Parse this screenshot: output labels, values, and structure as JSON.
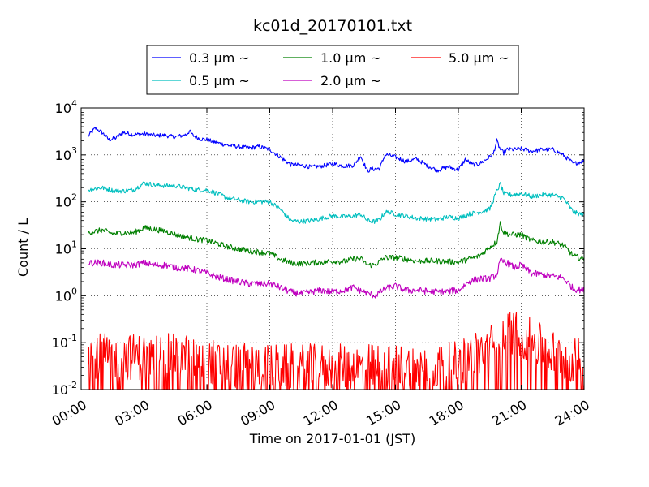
{
  "chart_data": {
    "type": "line",
    "title": "kc01d_20170101.txt",
    "xlabel": "Time on 2017-01-01 (JST)",
    "ylabel": "Count / L",
    "xlim": [
      "00:00",
      "24:00"
    ],
    "ylim": [
      0.01,
      10000
    ],
    "yscale": "log",
    "grid": true,
    "legend_position": "top-center (outside plot)",
    "x_ticks": [
      "00:00",
      "03:00",
      "06:00",
      "09:00",
      "12:00",
      "15:00",
      "18:00",
      "21:00",
      "24:00"
    ],
    "y_ticks": [
      {
        "base": "10",
        "exp": "-2"
      },
      {
        "base": "10",
        "exp": "-1"
      },
      {
        "base": "10",
        "exp": "0"
      },
      {
        "base": "10",
        "exp": "1"
      },
      {
        "base": "10",
        "exp": "2"
      },
      {
        "base": "10",
        "exp": "3"
      },
      {
        "base": "10",
        "exp": "4"
      }
    ],
    "series": [
      {
        "name": "0.3 μm ~",
        "color": "#0000ff",
        "noise": 0.045,
        "x": [
          "00:20",
          "00:40",
          "01:00",
          "01:20",
          "01:40",
          "02:00",
          "02:30",
          "03:00",
          "03:30",
          "04:00",
          "04:30",
          "05:00",
          "05:10",
          "05:20",
          "05:40",
          "06:00",
          "06:30",
          "07:00",
          "07:30",
          "08:00",
          "08:30",
          "09:00",
          "09:30",
          "10:00",
          "10:30",
          "11:00",
          "11:30",
          "12:00",
          "12:30",
          "13:00",
          "13:20",
          "13:40",
          "13:50",
          "14:00",
          "14:15",
          "14:30",
          "14:40",
          "15:00",
          "15:30",
          "16:00",
          "16:30",
          "17:00",
          "17:30",
          "18:00",
          "18:20",
          "18:40",
          "19:00",
          "19:20",
          "19:40",
          "19:50",
          "20:00",
          "20:10",
          "20:20",
          "20:40",
          "21:00",
          "21:30",
          "22:00",
          "22:30",
          "23:00",
          "23:30",
          "24:00"
        ],
        "y": [
          2500,
          3700,
          3000,
          2100,
          2300,
          3000,
          2700,
          2800,
          2600,
          2600,
          2400,
          2700,
          3200,
          2600,
          2200,
          2100,
          1800,
          1600,
          1500,
          1400,
          1500,
          1300,
          900,
          620,
          600,
          550,
          580,
          650,
          580,
          600,
          950,
          450,
          500,
          500,
          520,
          1000,
          1000,
          900,
          720,
          820,
          600,
          470,
          560,
          480,
          800,
          620,
          650,
          800,
          1050,
          2000,
          1300,
          1100,
          1300,
          1300,
          1350,
          1200,
          1300,
          1300,
          1000,
          650,
          750
        ]
      },
      {
        "name": "0.5 μm ~",
        "color": "#00bfbf",
        "noise": 0.05,
        "x": [
          "00:20",
          "01:00",
          "01:30",
          "02:00",
          "02:30",
          "03:00",
          "03:30",
          "04:00",
          "04:30",
          "05:00",
          "05:30",
          "06:00",
          "06:30",
          "07:00",
          "08:00",
          "09:00",
          "09:30",
          "10:00",
          "10:30",
          "11:00",
          "11:30",
          "12:00",
          "12:30",
          "13:00",
          "13:20",
          "13:40",
          "14:00",
          "14:15",
          "14:30",
          "14:40",
          "15:00",
          "15:30",
          "16:00",
          "17:00",
          "17:30",
          "18:00",
          "18:30",
          "19:00",
          "19:30",
          "19:50",
          "20:00",
          "20:10",
          "20:30",
          "21:00",
          "21:30",
          "22:00",
          "22:30",
          "23:00",
          "23:30",
          "24:00"
        ],
        "y": [
          180,
          200,
          175,
          170,
          180,
          250,
          230,
          220,
          220,
          200,
          180,
          180,
          150,
          120,
          100,
          100,
          70,
          40,
          38,
          40,
          45,
          50,
          48,
          50,
          55,
          40,
          38,
          42,
          60,
          60,
          55,
          50,
          45,
          42,
          48,
          45,
          55,
          60,
          70,
          170,
          240,
          150,
          140,
          150,
          130,
          140,
          140,
          120,
          60,
          52
        ]
      },
      {
        "name": "1.0 μm ~",
        "color": "#008000",
        "noise": 0.06,
        "x": [
          "00:20",
          "01:00",
          "01:30",
          "02:00",
          "02:30",
          "03:00",
          "03:30",
          "04:00",
          "04:30",
          "05:00",
          "05:30",
          "06:00",
          "06:30",
          "07:00",
          "08:00",
          "09:00",
          "09:30",
          "10:00",
          "10:30",
          "11:00",
          "11:30",
          "12:00",
          "12:30",
          "13:00",
          "13:20",
          "13:40",
          "14:00",
          "14:30",
          "15:00",
          "15:30",
          "16:00",
          "17:00",
          "18:00",
          "18:30",
          "19:00",
          "19:30",
          "19:50",
          "20:00",
          "20:10",
          "20:30",
          "21:00",
          "21:30",
          "22:00",
          "22:30",
          "23:00",
          "23:30",
          "24:00"
        ],
        "y": [
          22,
          25,
          21,
          22,
          22,
          28,
          26,
          24,
          20,
          18,
          16,
          15,
          13,
          11,
          9,
          8,
          6,
          5,
          4.8,
          5,
          5.2,
          5.5,
          5.3,
          6,
          6.2,
          4.5,
          4.5,
          6.5,
          6.5,
          6,
          5.5,
          5.5,
          5.2,
          6,
          7,
          11,
          14,
          35,
          22,
          20,
          20,
          15,
          14,
          14,
          12,
          7,
          6
        ]
      },
      {
        "name": "2.0 μm ~",
        "color": "#bf00bf",
        "noise": 0.07,
        "x": [
          "00:20",
          "01:00",
          "01:30",
          "02:00",
          "02:30",
          "03:00",
          "03:30",
          "04:00",
          "04:30",
          "05:00",
          "05:30",
          "06:00",
          "06:30",
          "07:00",
          "08:00",
          "09:00",
          "09:30",
          "10:00",
          "10:30",
          "11:00",
          "11:30",
          "12:00",
          "12:30",
          "13:00",
          "13:30",
          "14:00",
          "14:30",
          "15:00",
          "15:30",
          "16:00",
          "17:00",
          "18:00",
          "18:30",
          "19:00",
          "19:30",
          "19:50",
          "20:00",
          "20:20",
          "20:40",
          "21:00",
          "21:30",
          "22:00",
          "22:30",
          "23:00",
          "23:30",
          "24:00"
        ],
        "y": [
          5,
          5,
          4.5,
          4.5,
          4.5,
          5,
          4.5,
          4.5,
          4,
          3.8,
          3.5,
          3,
          2.5,
          2.2,
          1.8,
          1.8,
          1.5,
          1.2,
          1.1,
          1.2,
          1.3,
          1.2,
          1.3,
          1.5,
          1.2,
          1,
          1.4,
          1.6,
          1.3,
          1.3,
          1.2,
          1.3,
          2,
          2.3,
          2.3,
          2.8,
          5.5,
          5,
          4,
          4.5,
          3,
          2.8,
          2.6,
          2.4,
          1.4,
          1.3
        ]
      },
      {
        "name": "5.0 μm ~",
        "color": "#ff0000",
        "noise": 0.5,
        "x": [
          "00:20",
          "01:00",
          "02:00",
          "03:00",
          "04:00",
          "05:00",
          "06:00",
          "07:00",
          "08:00",
          "09:00",
          "10:00",
          "11:00",
          "12:00",
          "13:00",
          "14:00",
          "15:00",
          "16:00",
          "17:00",
          "18:00",
          "18:30",
          "19:00",
          "19:30",
          "20:00",
          "20:30",
          "21:00",
          "21:30",
          "22:00",
          "22:30",
          "23:00",
          "23:30",
          "24:00"
        ],
        "y": [
          0.06,
          0.05,
          0.05,
          0.05,
          0.05,
          0.05,
          0.04,
          0.035,
          0.03,
          0.03,
          0.03,
          0.03,
          0.03,
          0.03,
          0.03,
          0.03,
          0.03,
          0.03,
          0.035,
          0.05,
          0.06,
          0.08,
          0.12,
          0.18,
          0.15,
          0.1,
          0.08,
          0.06,
          0.05,
          0.04,
          0.04
        ]
      }
    ]
  }
}
